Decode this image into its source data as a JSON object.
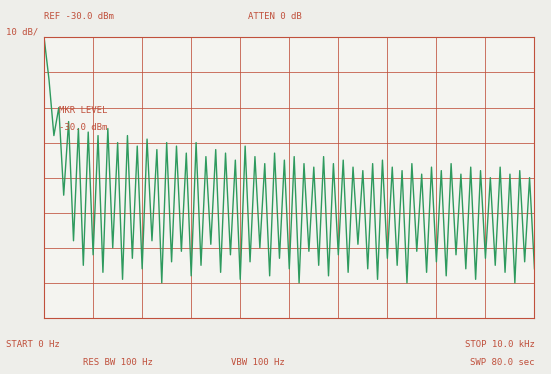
{
  "chart_data": {
    "type": "line",
    "annotations": [
      {
        "text": "REF -30.0 dBm"
      },
      {
        "text": "ATTEN 0 dB"
      },
      {
        "text": "10 dB/"
      },
      {
        "text": "MKR LEVEL"
      },
      {
        "text": "-30.0 dBm"
      },
      {
        "text": "START 0 Hz"
      },
      {
        "text": "STOP 10.0 kHz"
      },
      {
        "text": "RES BW 100 Hz"
      },
      {
        "text": "VBW 100 Hz"
      },
      {
        "text": "SWP 80.0 sec"
      }
    ],
    "x": [
      0,
      0.1,
      0.2,
      0.3,
      0.4,
      0.5,
      0.6,
      0.7,
      0.8,
      0.9,
      1.0,
      1.1,
      1.2,
      1.3,
      1.4,
      1.5,
      1.6,
      1.7,
      1.8,
      1.9,
      2.0,
      2.1,
      2.2,
      2.3,
      2.4,
      2.5,
      2.6,
      2.7,
      2.8,
      2.9,
      3.0,
      3.1,
      3.2,
      3.3,
      3.4,
      3.5,
      3.6,
      3.7,
      3.8,
      3.9,
      4.0,
      4.1,
      4.2,
      4.3,
      4.4,
      4.5,
      4.6,
      4.7,
      4.8,
      4.9,
      5.0,
      5.1,
      5.2,
      5.3,
      5.4,
      5.5,
      5.6,
      5.7,
      5.8,
      5.9,
      6.0,
      6.1,
      6.2,
      6.3,
      6.4,
      6.5,
      6.6,
      6.7,
      6.8,
      6.9,
      7.0,
      7.1,
      7.2,
      7.3,
      7.4,
      7.5,
      7.6,
      7.7,
      7.8,
      7.9,
      8.0,
      8.1,
      8.2,
      8.3,
      8.4,
      8.5,
      8.6,
      8.7,
      8.8,
      8.9,
      9.0,
      9.1,
      9.2,
      9.3,
      9.4,
      9.5,
      9.6,
      9.7,
      9.8,
      9.9,
      10.0
    ],
    "values": [
      -30,
      -42,
      -58,
      -50,
      -75,
      -54,
      -88,
      -56,
      -95,
      -57,
      -92,
      -58,
      -97,
      -56,
      -90,
      -60,
      -99,
      -58,
      -93,
      -61,
      -96,
      -59,
      -88,
      -62,
      -100,
      -60,
      -94,
      -61,
      -91,
      -63,
      -98,
      -60,
      -95,
      -64,
      -89,
      -62,
      -97,
      -63,
      -92,
      -65,
      -99,
      -61,
      -94,
      -64,
      -90,
      -66,
      -98,
      -63,
      -93,
      -65,
      -96,
      -64,
      -100,
      -66,
      -91,
      -67,
      -95,
      -64,
      -98,
      -66,
      -92,
      -65,
      -97,
      -67,
      -89,
      -68,
      -96,
      -66,
      -99,
      -65,
      -93,
      -67,
      -95,
      -68,
      -100,
      -66,
      -91,
      -69,
      -97,
      -67,
      -94,
      -68,
      -98,
      -66,
      -92,
      -69,
      -96,
      -67,
      -99,
      -68,
      -93,
      -70,
      -95,
      -67,
      -97,
      -69,
      -100,
      -68,
      -94,
      -70,
      -96
    ],
    "color": "#2e9a5e",
    "xlim": [
      0,
      10
    ],
    "xticks": [
      0,
      1,
      2,
      3,
      4,
      5,
      6,
      7,
      8,
      9,
      10
    ],
    "ylim": [
      -110,
      -30
    ],
    "yticks": [
      -110,
      -100,
      -90,
      -80,
      -70,
      -60,
      -50,
      -40,
      -30
    ],
    "grid": true,
    "tick_labels": false
  }
}
